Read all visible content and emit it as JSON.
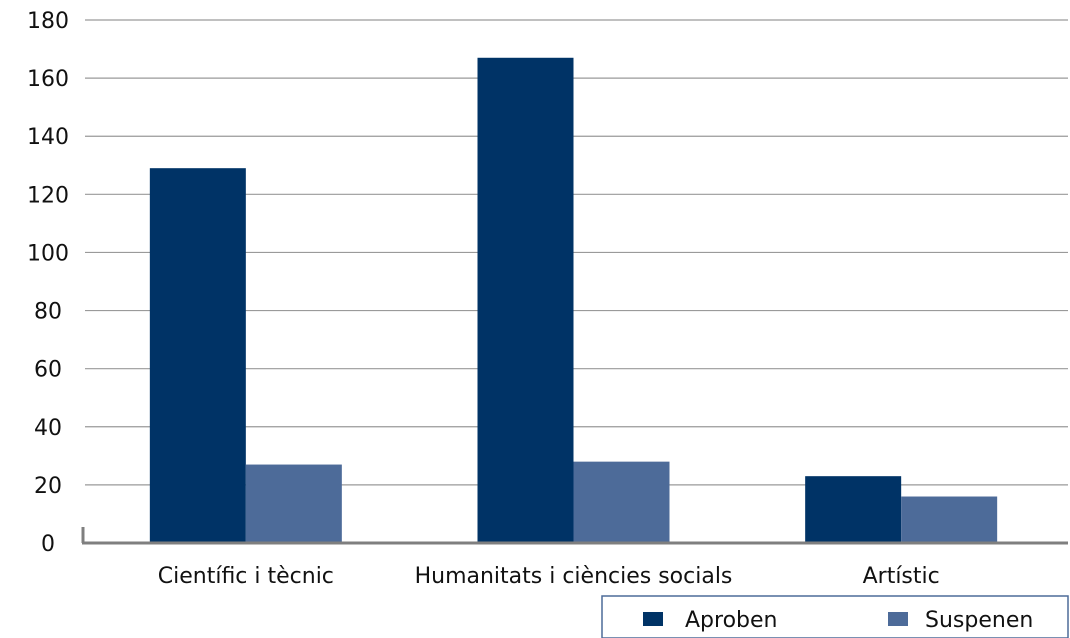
{
  "chart_data": {
    "type": "bar",
    "categories": [
      "Científic i tècnic",
      "Humanitats i ciències socials",
      "Artístic"
    ],
    "series": [
      {
        "name": "Aproben",
        "values": [
          129,
          167,
          23
        ],
        "color": "#003366"
      },
      {
        "name": "Suspenen",
        "values": [
          27,
          28,
          16
        ],
        "color": "#4D6B99"
      }
    ],
    "ylim": [
      0,
      180
    ],
    "yticks": [
      "0",
      "20",
      "40",
      "60",
      "80",
      "100",
      "120",
      "140",
      "160",
      "180"
    ],
    "grid": true,
    "legend_position": "bottom-right",
    "title": "",
    "xlabel": "",
    "ylabel": ""
  }
}
